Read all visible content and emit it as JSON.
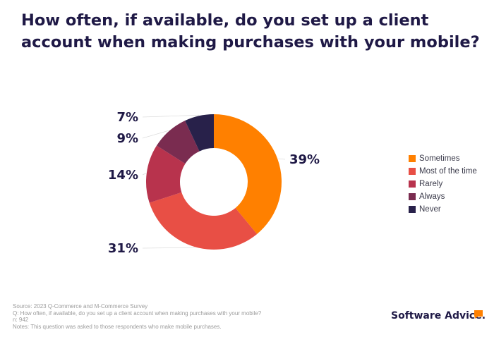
{
  "title": {
    "line1": "How often, if available, do you set up a client",
    "line2": "account when making purchases with your mobile?"
  },
  "chart_data": {
    "type": "pie",
    "donut": true,
    "categories": [
      "Sometimes",
      "Most of the time",
      "Rarely",
      "Always",
      "Never"
    ],
    "values": [
      39,
      31,
      14,
      9,
      7
    ],
    "value_labels": [
      "39%",
      "31%",
      "14%",
      "9%",
      "7%"
    ],
    "colors": [
      "#ff8000",
      "#e84f45",
      "#b8334d",
      "#7a2c50",
      "#28214a"
    ],
    "legend_position": "right"
  },
  "legend": [
    {
      "label": "Sometimes",
      "color": "#ff8000"
    },
    {
      "label": "Most of the time",
      "color": "#e84f45"
    },
    {
      "label": "Rarely",
      "color": "#b8334d"
    },
    {
      "label": "Always",
      "color": "#7a2c50"
    },
    {
      "label": "Never",
      "color": "#28214a"
    }
  ],
  "footnotes": {
    "source": "Source: 2023 Q-Commerce and M-Commerce Survey",
    "question": "Q: How often, if available, do you set up a client account when making purchases with your mobile?",
    "n": "n: 942",
    "notes": "Notes: This question was asked to those respondents who  make mobile purchases."
  },
  "brand": {
    "name": "Software Advice.",
    "icon": "speech-bubble-icon",
    "icon_color": "#ff8000"
  }
}
